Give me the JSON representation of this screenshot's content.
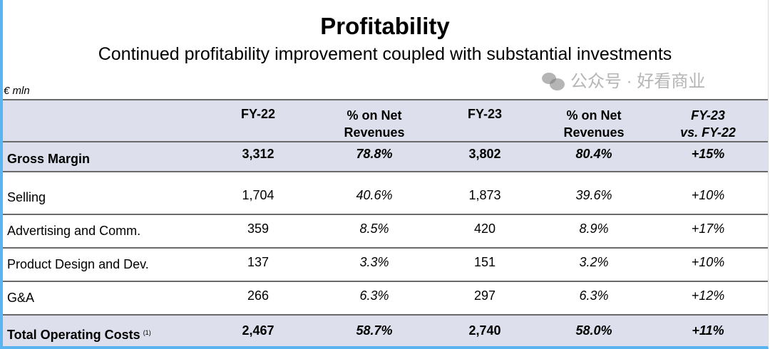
{
  "title": "Profitability",
  "subtitle": "Continued profitability improvement coupled with substantial investments",
  "unit": "€ mln",
  "headers": {
    "fy22": "FY-22",
    "pct1a": "% on Net",
    "pct1b": "Revenues",
    "fy23": "FY-23",
    "pct2a": "% on Net",
    "pct2b": "Revenues",
    "deltaa": "FY-23",
    "deltab": "vs. FY-22"
  },
  "rows": [
    {
      "label": "Gross Margin",
      "fy22": "3,312",
      "pct22": "78.8%",
      "fy23": "3,802",
      "pct23": "80.4%",
      "delta": "+15%"
    },
    {
      "label": "Selling",
      "fy22": "1,704",
      "pct22": "40.6%",
      "fy23": "1,873",
      "pct23": "39.6%",
      "delta": "+10%"
    },
    {
      "label": "Advertising and Comm.",
      "fy22": "359",
      "pct22": "8.5%",
      "fy23": "420",
      "pct23": "8.9%",
      "delta": "+17%"
    },
    {
      "label": "Product Design and Dev.",
      "fy22": "137",
      "pct22": "3.3%",
      "fy23": "151",
      "pct23": "3.2%",
      "delta": "+10%"
    },
    {
      "label": "G&A",
      "fy22": "266",
      "pct22": "6.3%",
      "fy23": "297",
      "pct23": "6.3%",
      "delta": "+12%"
    },
    {
      "label": "Total Operating Costs",
      "note": "(1)",
      "fy22": "2,467",
      "pct22": "58.7%",
      "fy23": "2,740",
      "pct23": "58.0%",
      "delta": "+11%"
    }
  ],
  "watermark": "公众号 · 好看商业"
}
